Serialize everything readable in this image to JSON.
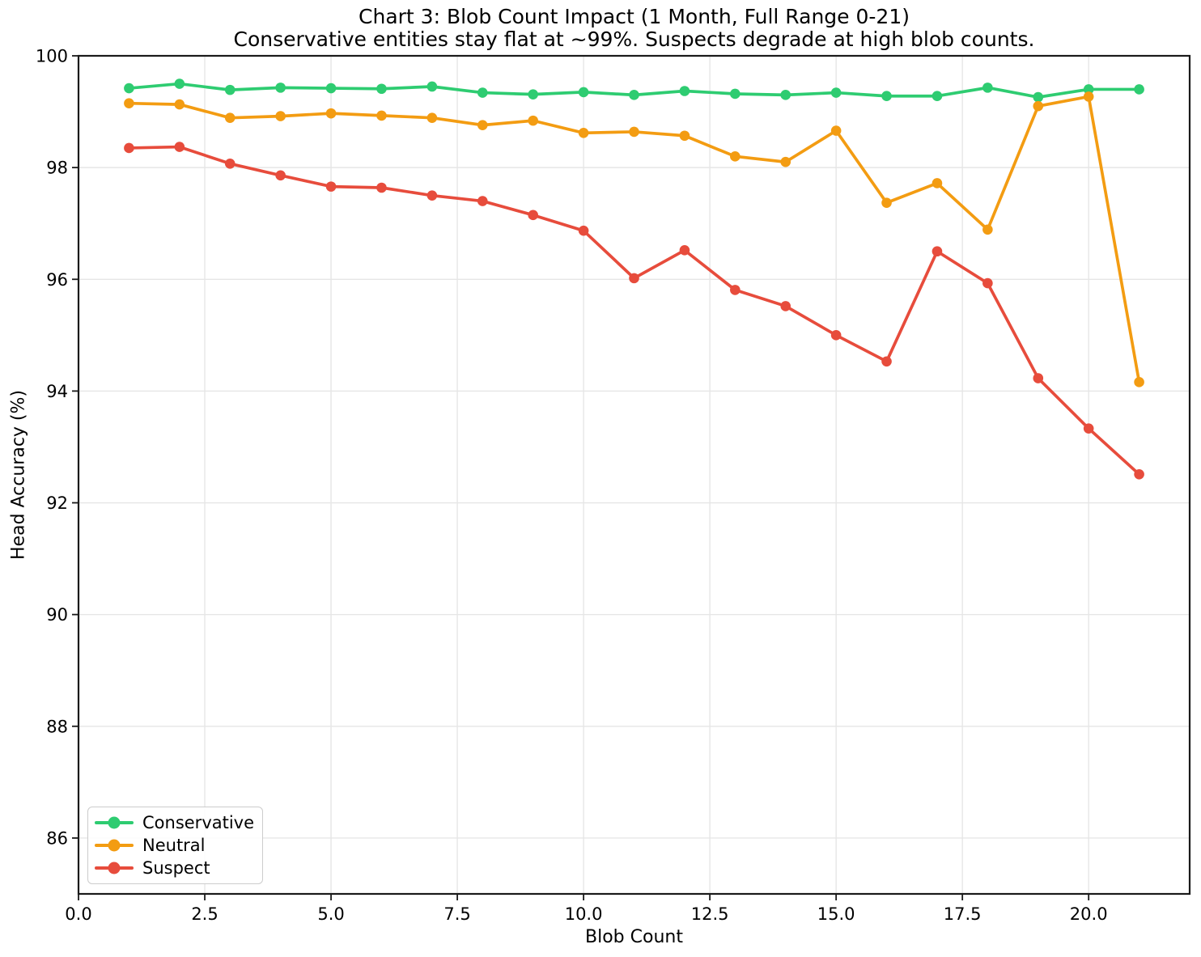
{
  "chart_data": {
    "type": "line",
    "title": "Chart 3: Blob Count Impact (1 Month, Full Range 0-21)",
    "subtitle": "Conservative entities stay flat at ~99%. Suspects degrade at high blob counts.",
    "xlabel": "Blob Count",
    "ylabel": "Head Accuracy (%)",
    "xlim": [
      0,
      22
    ],
    "ylim": [
      85,
      100
    ],
    "grid": true,
    "legend_position": "lower left",
    "x_ticks": [
      0,
      2.5,
      5,
      7.5,
      10,
      12.5,
      15,
      17.5,
      20
    ],
    "x_tick_labels": [
      "0.0",
      "2.5",
      "5.0",
      "7.5",
      "10.0",
      "12.5",
      "15.0",
      "17.5",
      "20.0"
    ],
    "y_ticks": [
      86,
      88,
      90,
      92,
      94,
      96,
      98,
      100
    ],
    "y_tick_labels": [
      "86",
      "88",
      "90",
      "92",
      "94",
      "96",
      "98",
      "100"
    ],
    "x": [
      1,
      2,
      3,
      4,
      5,
      6,
      7,
      8,
      9,
      10,
      11,
      12,
      13,
      14,
      15,
      16,
      17,
      18,
      19,
      20,
      21
    ],
    "series": [
      {
        "name": "Conservative",
        "color": "#2ecc71",
        "values": [
          99.42,
          99.5,
          99.39,
          99.43,
          99.42,
          99.41,
          99.45,
          99.34,
          99.31,
          99.35,
          99.3,
          99.37,
          99.32,
          99.3,
          99.34,
          99.28,
          99.28,
          99.43,
          99.26,
          99.4,
          99.4
        ]
      },
      {
        "name": "Neutral",
        "color": "#f39c12",
        "values": [
          99.15,
          99.13,
          98.89,
          98.92,
          98.97,
          98.93,
          98.89,
          98.76,
          98.84,
          98.62,
          98.64,
          98.57,
          98.2,
          98.1,
          98.66,
          97.37,
          97.72,
          96.89,
          99.1,
          99.27,
          94.16
        ]
      },
      {
        "name": "Suspect",
        "color": "#e74c3c",
        "values": [
          98.35,
          98.37,
          98.07,
          97.86,
          97.66,
          97.64,
          97.5,
          97.4,
          97.15,
          96.87,
          96.02,
          96.52,
          95.81,
          95.52,
          95.0,
          94.53,
          96.5,
          95.93,
          94.23,
          93.33,
          92.51
        ]
      }
    ]
  }
}
